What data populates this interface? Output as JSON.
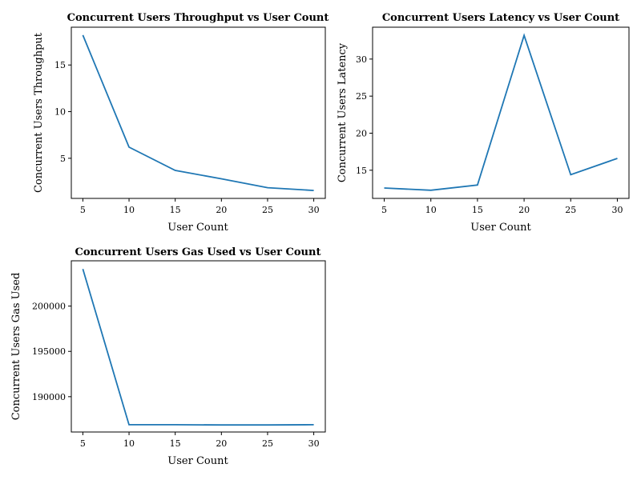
{
  "chart_data": [
    {
      "type": "line",
      "title": "Concurrent Users Throughput vs User Count",
      "xlabel": "User Count",
      "ylabel": "Concurrent Users Throughput",
      "x": [
        5,
        10,
        15,
        20,
        25,
        30
      ],
      "series": [
        {
          "values": [
            18.2,
            6.2,
            3.7,
            2.8,
            1.85,
            1.55
          ]
        }
      ],
      "xlim": [
        3.75,
        31.25
      ],
      "ylim": [
        0.7,
        19.05
      ],
      "xticks": [
        5,
        10,
        15,
        20,
        25,
        30
      ],
      "yticks": [
        5,
        10,
        15
      ],
      "grid": false
    },
    {
      "type": "line",
      "title": "Concurrent Users Latency vs User Count",
      "xlabel": "User Count",
      "ylabel": "Concurrent Users Latency",
      "x": [
        5,
        10,
        15,
        20,
        25,
        30
      ],
      "series": [
        {
          "values": [
            12.6,
            12.3,
            13.0,
            33.2,
            14.4,
            16.6
          ]
        }
      ],
      "xlim": [
        3.75,
        31.25
      ],
      "ylim": [
        11.2,
        34.3
      ],
      "xticks": [
        5,
        10,
        15,
        20,
        25,
        30
      ],
      "yticks": [
        15,
        20,
        25,
        30
      ],
      "grid": false
    },
    {
      "type": "line",
      "title": "Concurrent Users Gas Used vs User Count",
      "xlabel": "User Count",
      "ylabel": "Concurrent Users Gas Used",
      "x": [
        5,
        10,
        15,
        20,
        25,
        30
      ],
      "series": [
        {
          "values": [
            204100,
            186900,
            186900,
            186880,
            186880,
            186900
          ]
        }
      ],
      "xlim": [
        3.75,
        31.25
      ],
      "ylim": [
        186100,
        205000
      ],
      "xticks": [
        5,
        10,
        15,
        20,
        25,
        30
      ],
      "yticks": [
        190000,
        195000,
        200000
      ],
      "grid": false
    }
  ],
  "colors": {
    "line": "#1f77b4",
    "axes": "#000000"
  }
}
